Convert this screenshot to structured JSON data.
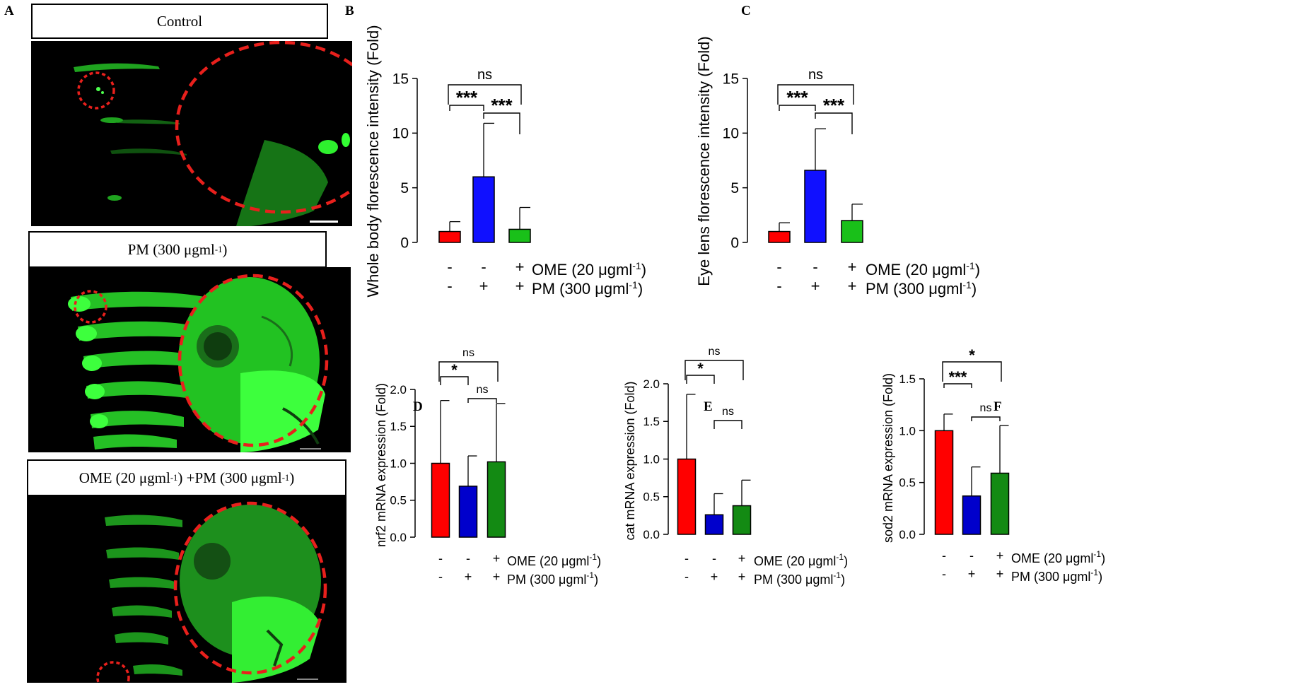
{
  "panel_letters": [
    "A",
    "B",
    "C",
    "D",
    "E",
    "F"
  ],
  "image_titles": [
    {
      "text": "Control"
    },
    {
      "text": "PM (300 μgml",
      "sup": "-1",
      "tail": ")"
    },
    {
      "text": "OME (20 μgml",
      "sup": "-1",
      "mid": ") +PM (300 μgml",
      "sup2": "-1",
      "tail": ")"
    }
  ],
  "colors": {
    "red": "#ff0000",
    "blue": "#1010ff",
    "bright_green": "#19c019",
    "dark_green": "#138a13",
    "dark_blue": "#0000cc",
    "fluorescence": "#33ff33",
    "roi": "#e8201c"
  },
  "chart_data": [
    {
      "id": "B",
      "type": "bar",
      "ylabel": "Whole body florescence intensity (Fold)",
      "ylim": [
        0,
        15
      ],
      "yticks": [
        "0",
        "5",
        "10",
        "15"
      ],
      "values": [
        1.0,
        6.0,
        1.2
      ],
      "errors": [
        0.9,
        4.9,
        2.0
      ],
      "bar_colors": [
        "#ff0000",
        "#1010ff",
        "#19c019"
      ],
      "treatment_rows": [
        {
          "marks": [
            "-",
            "-",
            "+"
          ],
          "label": "OME (20 μgml",
          "sup": "-1",
          "tail": ")"
        },
        {
          "marks": [
            "-",
            "+",
            "+"
          ],
          "label": "PM (300 μgml",
          "sup": "-1",
          "tail": ")"
        }
      ],
      "annotations": [
        {
          "text": "ns",
          "bars": [
            0,
            2
          ]
        },
        {
          "text": "***",
          "bars": [
            0,
            1
          ]
        },
        {
          "text": "***",
          "bars": [
            1,
            2
          ]
        }
      ]
    },
    {
      "id": "C",
      "type": "bar",
      "ylabel": "Eye lens florescence intensity (Fold)",
      "ylim": [
        0,
        15
      ],
      "yticks": [
        "0",
        "5",
        "10",
        "15"
      ],
      "values": [
        1.0,
        6.6,
        2.0
      ],
      "errors": [
        0.8,
        3.8,
        1.5
      ],
      "bar_colors": [
        "#ff0000",
        "#1010ff",
        "#19c019"
      ],
      "treatment_rows": [
        {
          "marks": [
            "-",
            "-",
            "+"
          ],
          "label": "OME (20 μgml",
          "sup": "-1",
          "tail": ")"
        },
        {
          "marks": [
            "-",
            "+",
            "+"
          ],
          "label": "PM (300 μgml",
          "sup": "-1",
          "tail": ")"
        }
      ],
      "annotations": [
        {
          "text": "ns",
          "bars": [
            0,
            2
          ]
        },
        {
          "text": "***",
          "bars": [
            0,
            1
          ]
        },
        {
          "text": "***",
          "bars": [
            1,
            2
          ]
        }
      ]
    },
    {
      "id": "D",
      "type": "bar",
      "ylabel": "nrf2 mRNA expression (Fold)",
      "ylim": [
        0,
        2
      ],
      "yticks": [
        "0.0",
        "0.5",
        "1.0",
        "1.5",
        "2.0"
      ],
      "values": [
        1.0,
        0.69,
        1.02
      ],
      "errors": [
        0.85,
        0.41,
        0.79
      ],
      "bar_colors": [
        "#ff0000",
        "#0000cc",
        "#138a13"
      ],
      "treatment_rows": [
        {
          "marks": [
            "-",
            "-",
            "+"
          ],
          "label": "OME (20 μgml",
          "sup": "-1",
          "tail": ")"
        },
        {
          "marks": [
            "-",
            "+",
            "+"
          ],
          "label": "PM (300 μgml",
          "sup": "-1",
          "tail": ")"
        }
      ],
      "annotations": [
        {
          "text": "ns",
          "bars": [
            0,
            2
          ]
        },
        {
          "text": "*",
          "bars": [
            0,
            1
          ]
        },
        {
          "text": "ns",
          "bars": [
            1,
            2
          ]
        }
      ]
    },
    {
      "id": "E",
      "type": "bar",
      "ylabel": "cat mRNA expression (Fold)",
      "ylim": [
        0,
        2
      ],
      "yticks": [
        "0.0",
        "0.5",
        "1.0",
        "1.5",
        "2.0"
      ],
      "values": [
        1.0,
        0.26,
        0.38
      ],
      "errors": [
        0.86,
        0.28,
        0.34
      ],
      "bar_colors": [
        "#ff0000",
        "#0000cc",
        "#138a13"
      ],
      "treatment_rows": [
        {
          "marks": [
            "-",
            "-",
            "+"
          ],
          "label": "OME (20 μgml",
          "sup": "-1",
          "tail": ")"
        },
        {
          "marks": [
            "-",
            "+",
            "+"
          ],
          "label": "PM (300 μgml",
          "sup": "-1",
          "tail": ")"
        }
      ],
      "annotations": [
        {
          "text": "ns",
          "bars": [
            0,
            2
          ]
        },
        {
          "text": "*",
          "bars": [
            0,
            1
          ]
        },
        {
          "text": "ns",
          "bars": [
            1,
            2
          ]
        }
      ]
    },
    {
      "id": "F",
      "type": "bar",
      "ylabel": "sod2 mRNA expression (Fold)",
      "ylim": [
        0,
        1.5
      ],
      "yticks": [
        "0.0",
        "0.5",
        "1.0",
        "1.5"
      ],
      "values": [
        1.0,
        0.37,
        0.59
      ],
      "errors": [
        0.16,
        0.28,
        0.46
      ],
      "bar_colors": [
        "#ff0000",
        "#0000cc",
        "#138a13"
      ],
      "treatment_rows": [
        {
          "marks": [
            "-",
            "-",
            "+"
          ],
          "label": "OME (20 μgml",
          "sup": "-1",
          "tail": ")"
        },
        {
          "marks": [
            "-",
            "+",
            "+"
          ],
          "label": "PM (300 μgml",
          "sup": "-1",
          "tail": ")"
        }
      ],
      "annotations": [
        {
          "text": "*",
          "bars": [
            0,
            2
          ]
        },
        {
          "text": "***",
          "bars": [
            0,
            1
          ]
        },
        {
          "text": "ns",
          "bars": [
            1,
            2
          ]
        }
      ]
    }
  ]
}
